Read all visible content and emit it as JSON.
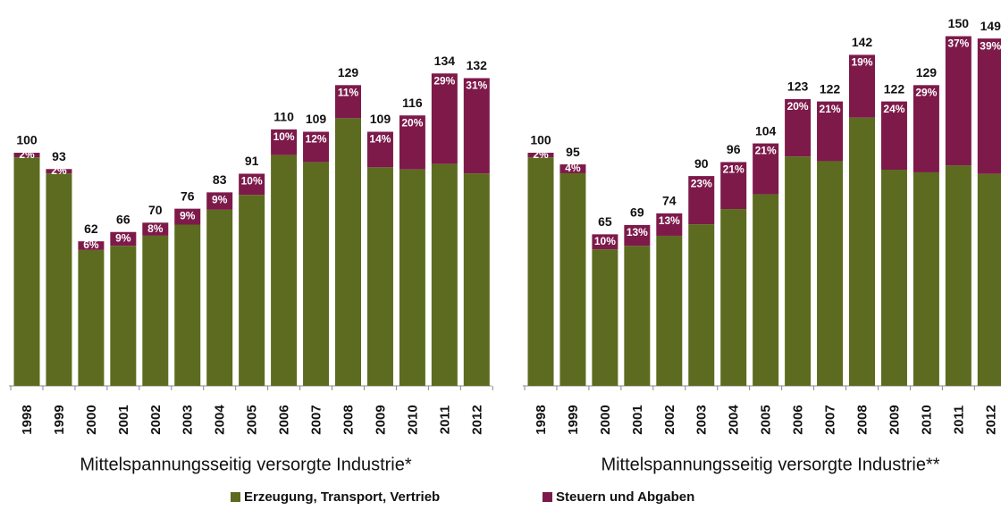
{
  "legend": [
    {
      "name": "Erzeugung, Transport, Vertrieb",
      "color": "#5c6b1f"
    },
    {
      "name": "Steuern und Abgaben",
      "color": "#7d1a4a"
    }
  ],
  "chart_data": [
    {
      "type": "bar",
      "title": "Mittelspannungsseitig versorgte Industrie*",
      "categories": [
        "1998",
        "1999",
        "2000",
        "2001",
        "2002",
        "2003",
        "2004",
        "2005",
        "2006",
        "2007",
        "2008",
        "2009",
        "2010",
        "2011",
        "2012"
      ],
      "values": [
        100,
        93,
        62,
        66,
        70,
        76,
        83,
        91,
        110,
        109,
        129,
        109,
        116,
        134,
        132
      ],
      "series": [
        {
          "name": "Steuern und Abgaben",
          "values": [
            2,
            2,
            6,
            9,
            8,
            9,
            9,
            10,
            10,
            12,
            11,
            14,
            20,
            29,
            31
          ],
          "value_labels": [
            "2%",
            "2%",
            "6%",
            "9%",
            "8%",
            "9%",
            "9%",
            "10%",
            "10%",
            "12%",
            "11%",
            "14%",
            "20%",
            "29%",
            "31%"
          ]
        }
      ]
    },
    {
      "type": "bar",
      "title": "Mittelspannungsseitig versorgte Industrie**",
      "categories": [
        "1998",
        "1999",
        "2000",
        "2001",
        "2002",
        "2003",
        "2004",
        "2005",
        "2006",
        "2007",
        "2008",
        "2009",
        "2010",
        "2011",
        "2012"
      ],
      "values": [
        100,
        95,
        65,
        69,
        74,
        90,
        96,
        104,
        123,
        122,
        142,
        122,
        129,
        150,
        149
      ],
      "series": [
        {
          "name": "Steuern und Abgaben",
          "values": [
            2,
            4,
            10,
            13,
            13,
            23,
            21,
            21,
            20,
            21,
            19,
            24,
            29,
            37,
            39
          ],
          "value_labels": [
            "2%",
            "4%",
            "10%",
            "13%",
            "13%",
            "23%",
            "21%",
            "21%",
            "20%",
            "21%",
            "19%",
            "24%",
            "29%",
            "37%",
            "39%"
          ]
        }
      ]
    }
  ]
}
